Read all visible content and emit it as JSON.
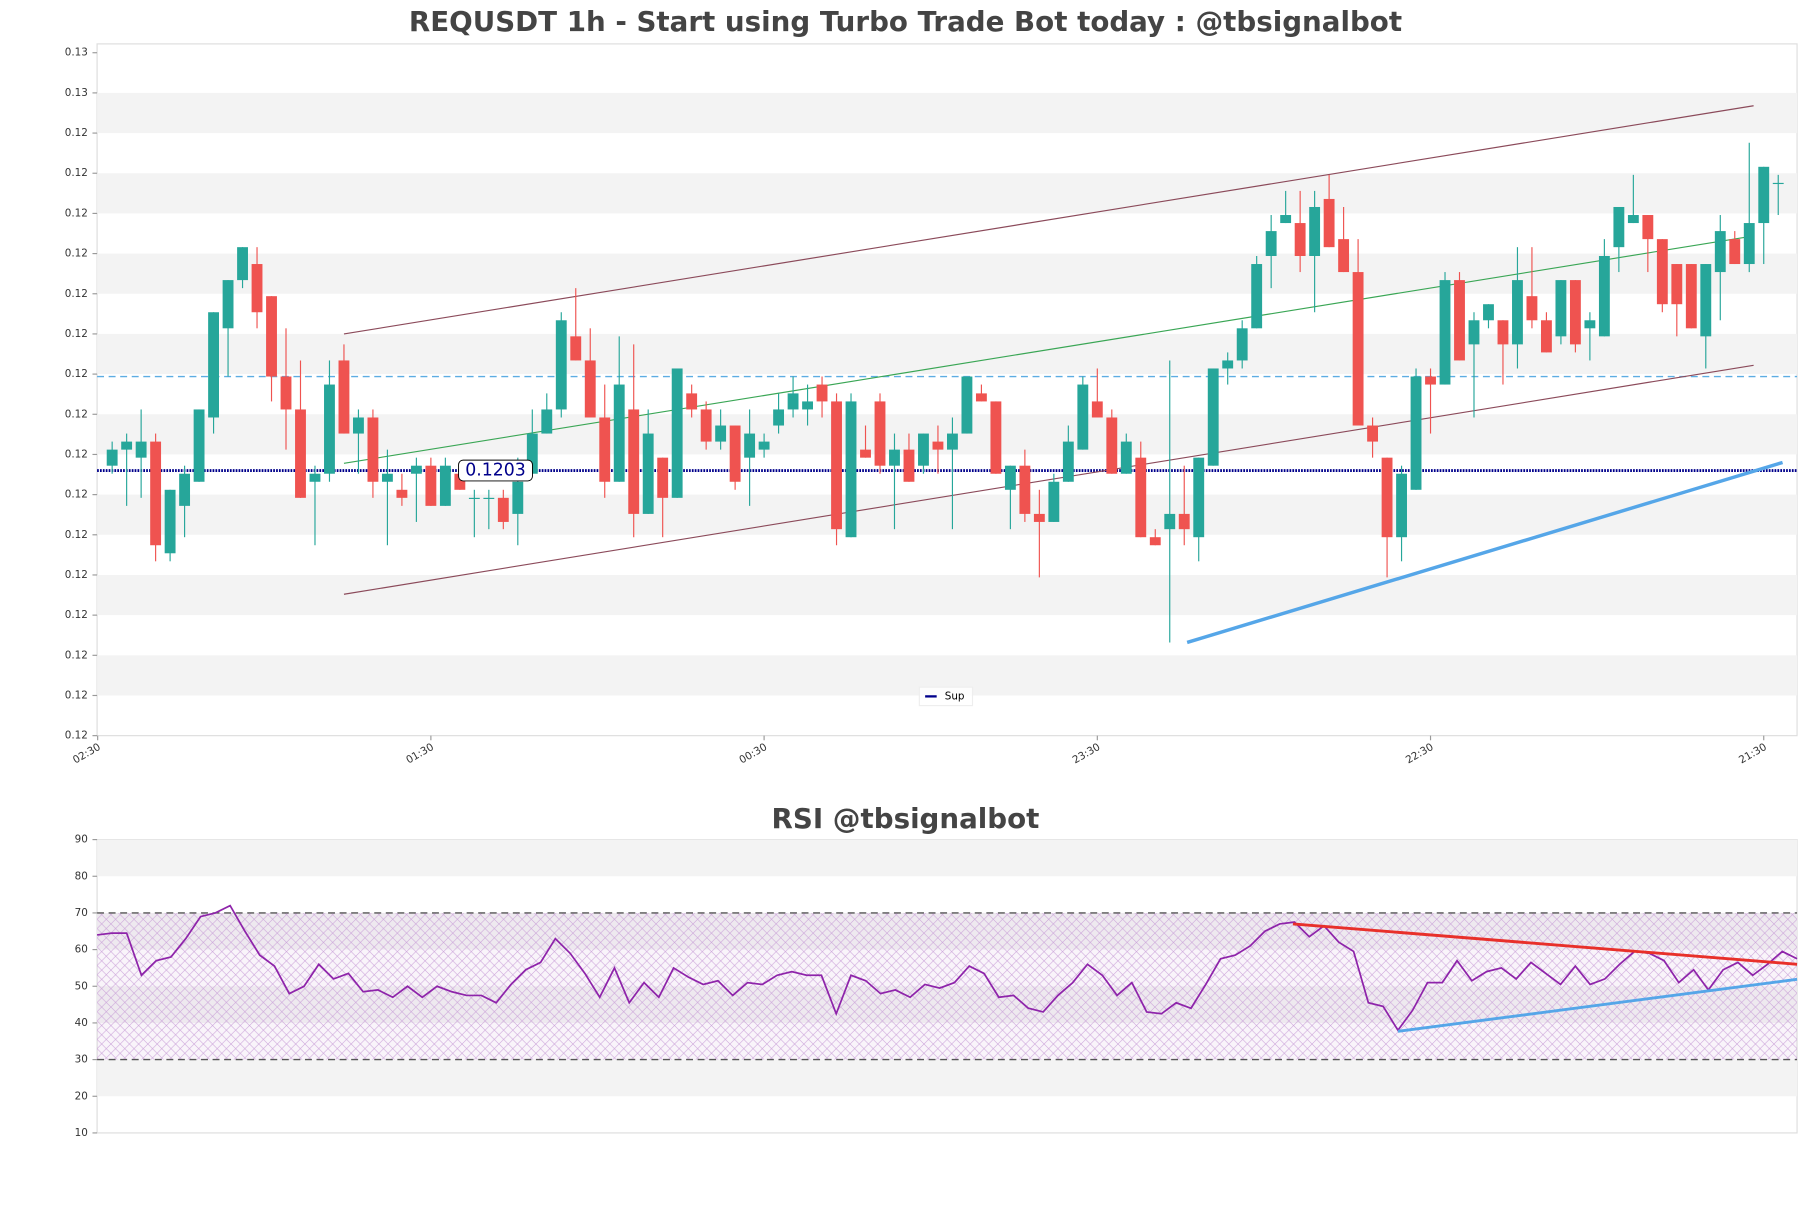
{
  "chart_data": [
    {
      "type": "candlestick",
      "title": "REQUSDT 1h - Start using Turbo Trade Bot today : @tbsignalbot",
      "open": [
        0.12036,
        0.12056,
        0.12046,
        0.12066,
        0.11927,
        0.11986,
        0.12016,
        0.12096,
        0.12207,
        0.12267,
        0.12287,
        0.12247,
        0.12147,
        0.12106,
        0.12016,
        0.12026,
        0.12167,
        0.12076,
        0.12096,
        0.12016,
        0.12006,
        0.12026,
        0.12036,
        0.11986,
        0.12026,
        0.11996,
        0.11996,
        0.11996,
        0.11976,
        0.12026,
        0.12076,
        0.12106,
        0.12197,
        0.12167,
        0.12096,
        0.12016,
        0.12106,
        0.11976,
        0.12046,
        0.11996,
        0.12126,
        0.12106,
        0.12066,
        0.12086,
        0.12046,
        0.12056,
        0.12086,
        0.12106,
        0.12106,
        0.12137,
        0.12116,
        0.11947,
        0.12056,
        0.12116,
        0.12036,
        0.12056,
        0.12036,
        0.12066,
        0.12056,
        0.12076,
        0.12126,
        0.12116,
        0.12006,
        0.12036,
        0.11976,
        0.11966,
        0.12016,
        0.12056,
        0.12116,
        0.12096,
        0.12026,
        0.12046,
        0.11947,
        0.11957,
        0.11976,
        0.11947,
        0.12036,
        0.12157,
        0.12167,
        0.12207,
        0.12297,
        0.12338,
        0.12338,
        0.12297,
        0.12368,
        0.12318,
        0.12277,
        0.12086,
        0.12046,
        0.11947,
        0.12006,
        0.12147,
        0.12137,
        0.12267,
        0.12187,
        0.12217,
        0.12217,
        0.12187,
        0.12247,
        0.12217,
        0.12197,
        0.12267,
        0.12207,
        0.12197,
        0.12308,
        0.12338,
        0.12348,
        0.12318,
        0.12287,
        0.12287,
        0.12197,
        0.12277,
        0.12318,
        0.12287,
        0.12338,
        0.12388
      ],
      "high": [
        0.12066,
        0.12076,
        0.12106,
        0.12076,
        0.12006,
        0.12036,
        0.12106,
        0.12227,
        0.12267,
        0.12308,
        0.12308,
        0.12247,
        0.12207,
        0.12167,
        0.12036,
        0.12167,
        0.12187,
        0.12106,
        0.12106,
        0.12056,
        0.12026,
        0.12046,
        0.12046,
        0.12046,
        0.12036,
        0.12006,
        0.12006,
        0.12006,
        0.12046,
        0.12106,
        0.12126,
        0.12227,
        0.12257,
        0.12207,
        0.12137,
        0.12197,
        0.12187,
        0.12106,
        0.12046,
        0.12157,
        0.12137,
        0.12116,
        0.12106,
        0.12086,
        0.12106,
        0.12076,
        0.12126,
        0.12147,
        0.12137,
        0.12147,
        0.12126,
        0.12126,
        0.12086,
        0.12126,
        0.12076,
        0.12076,
        0.12076,
        0.12086,
        0.12096,
        0.12147,
        0.12137,
        0.12116,
        0.12036,
        0.12056,
        0.12006,
        0.12026,
        0.12086,
        0.12147,
        0.12157,
        0.12106,
        0.12076,
        0.12066,
        0.11957,
        0.12167,
        0.12036,
        0.12046,
        0.12157,
        0.12177,
        0.12217,
        0.12297,
        0.12348,
        0.12378,
        0.12378,
        0.12378,
        0.12398,
        0.12358,
        0.12318,
        0.12096,
        0.12046,
        0.12036,
        0.12157,
        0.12157,
        0.12277,
        0.12277,
        0.12227,
        0.12237,
        0.12217,
        0.12308,
        0.12308,
        0.12227,
        0.12267,
        0.12267,
        0.12227,
        0.12318,
        0.12358,
        0.12398,
        0.12348,
        0.12318,
        0.12287,
        0.12287,
        0.12287,
        0.12348,
        0.12328,
        0.12438,
        0.12408,
        0.12398
      ],
      "low": [
        0.12026,
        0.11986,
        0.11996,
        0.11917,
        0.11917,
        0.11947,
        0.12016,
        0.12076,
        0.12147,
        0.12257,
        0.12207,
        0.12116,
        0.12056,
        0.11996,
        0.11937,
        0.12016,
        0.12076,
        0.12026,
        0.11996,
        0.11937,
        0.11986,
        0.11966,
        0.11986,
        0.11986,
        0.12006,
        0.11947,
        0.11957,
        0.11957,
        0.11937,
        0.12026,
        0.12076,
        0.12096,
        0.12167,
        0.12096,
        0.11996,
        0.12016,
        0.11947,
        0.11976,
        0.11947,
        0.11996,
        0.12096,
        0.12056,
        0.12056,
        0.12006,
        0.11986,
        0.12046,
        0.12076,
        0.12096,
        0.12086,
        0.12096,
        0.11937,
        0.11947,
        0.12046,
        0.12026,
        0.11957,
        0.12016,
        0.12026,
        0.12026,
        0.11957,
        0.12076,
        0.12116,
        0.12026,
        0.11957,
        0.11966,
        0.11897,
        0.11966,
        0.12016,
        0.12056,
        0.12096,
        0.12026,
        0.12026,
        0.11947,
        0.11937,
        0.11816,
        0.11937,
        0.11917,
        0.12036,
        0.12137,
        0.12157,
        0.12207,
        0.12257,
        0.12338,
        0.12277,
        0.12227,
        0.12308,
        0.12277,
        0.12086,
        0.12046,
        0.11897,
        0.11917,
        0.12006,
        0.12076,
        0.12137,
        0.12167,
        0.12096,
        0.12207,
        0.12137,
        0.12157,
        0.12207,
        0.12177,
        0.12187,
        0.12177,
        0.12167,
        0.12197,
        0.12277,
        0.12338,
        0.12277,
        0.12227,
        0.12197,
        0.12207,
        0.12157,
        0.12217,
        0.12287,
        0.12277,
        0.12287,
        0.12348
      ],
      "close": [
        0.12056,
        0.12066,
        0.12066,
        0.11937,
        0.12006,
        0.12026,
        0.12106,
        0.12227,
        0.12267,
        0.12308,
        0.12227,
        0.12147,
        0.12106,
        0.11996,
        0.12026,
        0.12137,
        0.12076,
        0.12096,
        0.12016,
        0.12026,
        0.11996,
        0.12036,
        0.11986,
        0.12036,
        0.12006,
        0.11996,
        0.11996,
        0.11966,
        0.12016,
        0.12076,
        0.12106,
        0.12217,
        0.12167,
        0.12096,
        0.12016,
        0.12137,
        0.11976,
        0.12076,
        0.11996,
        0.12157,
        0.12106,
        0.12066,
        0.12086,
        0.12016,
        0.12076,
        0.12066,
        0.12106,
        0.12126,
        0.12116,
        0.12116,
        0.11957,
        0.12116,
        0.12046,
        0.12036,
        0.12056,
        0.12016,
        0.12076,
        0.12056,
        0.12076,
        0.12147,
        0.12116,
        0.12026,
        0.12036,
        0.11976,
        0.11966,
        0.12016,
        0.12066,
        0.12137,
        0.12096,
        0.12026,
        0.12066,
        0.11947,
        0.11937,
        0.11976,
        0.11957,
        0.12046,
        0.12157,
        0.12167,
        0.12207,
        0.12287,
        0.12328,
        0.12348,
        0.12297,
        0.12358,
        0.12308,
        0.12277,
        0.12086,
        0.12066,
        0.11947,
        0.12026,
        0.12147,
        0.12137,
        0.12267,
        0.12167,
        0.12217,
        0.12237,
        0.12187,
        0.12267,
        0.12217,
        0.12177,
        0.12267,
        0.12187,
        0.12217,
        0.12297,
        0.12358,
        0.12348,
        0.12318,
        0.12237,
        0.12237,
        0.12207,
        0.12287,
        0.12328,
        0.12287,
        0.12338,
        0.12408,
        0.12388
      ],
      "up_color": "#26a69a",
      "down_color": "#ef5350",
      "xlim": [
        -1.04,
        116.3
      ],
      "xticks": [
        {
          "value": -1,
          "label": "02:30"
        },
        {
          "value": 22,
          "label": "01:30"
        },
        {
          "value": 45,
          "label": "00:30"
        },
        {
          "value": 68,
          "label": "23:30"
        },
        {
          "value": 91,
          "label": "22:30"
        },
        {
          "value": 114,
          "label": "21:30"
        }
      ],
      "ylim": [
        0.117,
        0.12561
      ],
      "yticks": [
        {
          "value": 0.117,
          "label": "0.12"
        },
        {
          "value": 0.1175,
          "label": "0.12"
        },
        {
          "value": 0.118,
          "label": "0.12"
        },
        {
          "value": 0.1185,
          "label": "0.12"
        },
        {
          "value": 0.119,
          "label": "0.12"
        },
        {
          "value": 0.1195,
          "label": "0.12"
        },
        {
          "value": 0.12,
          "label": "0.12"
        },
        {
          "value": 0.1205,
          "label": "0.12"
        },
        {
          "value": 0.121,
          "label": "0.12"
        },
        {
          "value": 0.1215,
          "label": "0.12"
        },
        {
          "value": 0.122,
          "label": "0.12"
        },
        {
          "value": 0.1225,
          "label": "0.12"
        },
        {
          "value": 0.123,
          "label": "0.12"
        },
        {
          "value": 0.1235,
          "label": "0.12"
        },
        {
          "value": 0.124,
          "label": "0.12"
        },
        {
          "value": 0.1245,
          "label": "0.12"
        },
        {
          "value": 0.125,
          "label": "0.13"
        },
        {
          "value": 0.1255,
          "label": "0.13"
        }
      ],
      "band_color": "#f3f3f3",
      "trend_lines": [
        {
          "color": "#8b4a5a",
          "width": 1,
          "x": [
            16,
            113.3
          ],
          "y": [
            0.122,
            0.12484
          ]
        },
        {
          "color": "#8b4a5a",
          "width": 1,
          "x": [
            16,
            113.3
          ],
          "y": [
            0.11876,
            0.12161
          ]
        },
        {
          "color": "#3aa655",
          "width": 1,
          "x": [
            16,
            113.3
          ],
          "y": [
            0.12039,
            0.12322
          ]
        },
        {
          "color": "#55a6e8",
          "width": 3,
          "x": [
            74.2,
            115.3
          ],
          "y": [
            0.11816,
            0.1204
          ]
        }
      ],
      "hlines": [
        {
          "color": "#5dade2",
          "style": "dashed",
          "y": 0.12147
        },
        {
          "name": "Sup",
          "color": "#00008b",
          "style": "dotted",
          "y": 0.1203
        }
      ],
      "legend": "lower center"
    },
    {
      "type": "line",
      "title": "RSI @tbsignalbot",
      "series": [
        {
          "color": "#8e24aa",
          "values": [
            64,
            64.5,
            64.5,
            53,
            57,
            58,
            63,
            69,
            70,
            72,
            65,
            58.5,
            55.5,
            48,
            50,
            56,
            52,
            53.5,
            48.5,
            49,
            47,
            50,
            47,
            50,
            48.5,
            47.5,
            47.5,
            45.5,
            50.5,
            54.5,
            56.5,
            63,
            59,
            53.5,
            47,
            55,
            45.5,
            51,
            47,
            55,
            52.5,
            50.5,
            51.5,
            47.5,
            51,
            50.5,
            53,
            54,
            53,
            53,
            42.5,
            53,
            51.5,
            48,
            49,
            47,
            50.5,
            49.5,
            51,
            55.5,
            53.5,
            47,
            47.5,
            44,
            43,
            47.5,
            51,
            56,
            53,
            47.5,
            51,
            43,
            42.5,
            45.5,
            44,
            50.5,
            57.5,
            58.5,
            61,
            65,
            67,
            67.5,
            63.5,
            66.5,
            62,
            59.5,
            45.5,
            44.5,
            38,
            43.5,
            51,
            51,
            57,
            51.5,
            54,
            55,
            52,
            56.5,
            53.5,
            50.5,
            55.5,
            50.5,
            52,
            56,
            59.5,
            59,
            57,
            51,
            54.5,
            49,
            54.5,
            56.5,
            53,
            56,
            59.5,
            57.5
          ]
        }
      ],
      "xlim": [
        0,
        115
      ],
      "ylim": [
        10,
        90
      ],
      "yticks": [
        10,
        20,
        30,
        40,
        50,
        60,
        70,
        80,
        90
      ],
      "band_color": "#f3f3f3",
      "zone": [
        30,
        70
      ],
      "zone_color": "#b070c0",
      "hlines": [
        {
          "color": "#555555",
          "style": "dashed",
          "y": 30
        },
        {
          "color": "#555555",
          "style": "dashed",
          "y": 70
        }
      ],
      "trend_lines": [
        {
          "color": "#e8302a",
          "width": 2.5,
          "x": [
            80.9,
            115
          ],
          "y": [
            67,
            56
          ]
        },
        {
          "color": "#55a6e8",
          "width": 2.5,
          "x": [
            88,
            115
          ],
          "y": [
            37.7,
            51.9
          ]
        }
      ]
    }
  ]
}
